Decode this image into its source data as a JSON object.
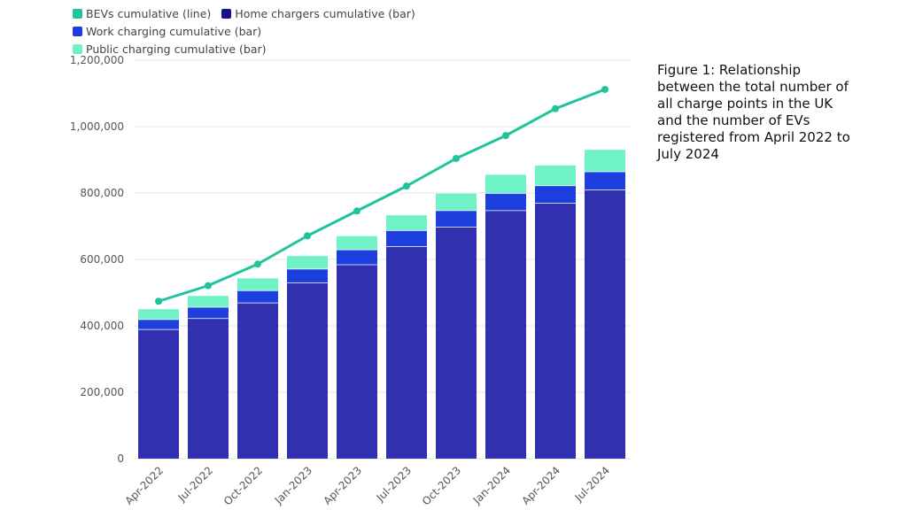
{
  "caption": "Figure 1: Relationship between the total number of all charge points in the UK and the number of EVs registered from April 2022 to July 2024",
  "colors": {
    "bevs": "#1fc49c",
    "home": "#3030b0",
    "work": "#1c3fdd",
    "public": "#6ff2c6",
    "home_legend": "#14148c",
    "work_legend": "#1c3ae6",
    "grid": "#e6e6e6"
  },
  "chart_data": {
    "type": "bar",
    "title": "",
    "xlabel": "",
    "ylabel": "",
    "ylim": [
      0,
      1200000
    ],
    "yticks": [
      0,
      200000,
      400000,
      600000,
      800000,
      1000000,
      1200000
    ],
    "ytick_labels": [
      "0",
      "200,000",
      "400,000",
      "600,000",
      "800,000",
      "1,000,000",
      "1,200,000"
    ],
    "categories": [
      "Apr-2022",
      "Jul-2022",
      "Oct-2022",
      "Jan-2023",
      "Apr-2023",
      "Jul-2023",
      "Oct-2023",
      "Jan-2024",
      "Apr-2024",
      "Jul-2024"
    ],
    "legend": [
      {
        "name": "BEVs cumulative (line)",
        "color_key": "bevs"
      },
      {
        "name": "Home chargers cumulative (bar)",
        "color_key": "home_legend"
      },
      {
        "name": "Work charging cumulative (bar)",
        "color_key": "work_legend"
      },
      {
        "name": "Public charging cumulative (bar)",
        "color_key": "public"
      }
    ],
    "series": [
      {
        "name": "Home chargers cumulative (bar)",
        "kind": "bar",
        "values": [
          390000,
          423000,
          470000,
          530000,
          585000,
          640000,
          698000,
          748000,
          770000,
          810000
        ]
      },
      {
        "name": "Work charging cumulative (bar)",
        "kind": "bar",
        "values": [
          30000,
          34000,
          37000,
          42000,
          45000,
          48000,
          50000,
          52000,
          53000,
          55000
        ]
      },
      {
        "name": "Public charging cumulative (bar)",
        "kind": "bar",
        "values": [
          30000,
          33000,
          36000,
          38000,
          40000,
          45000,
          50000,
          55000,
          60000,
          65000
        ]
      },
      {
        "name": "BEVs cumulative (line)",
        "kind": "line",
        "values": [
          474000,
          521000,
          586000,
          671000,
          746000,
          821000,
          904000,
          973000,
          1054000,
          1112000
        ]
      }
    ]
  }
}
